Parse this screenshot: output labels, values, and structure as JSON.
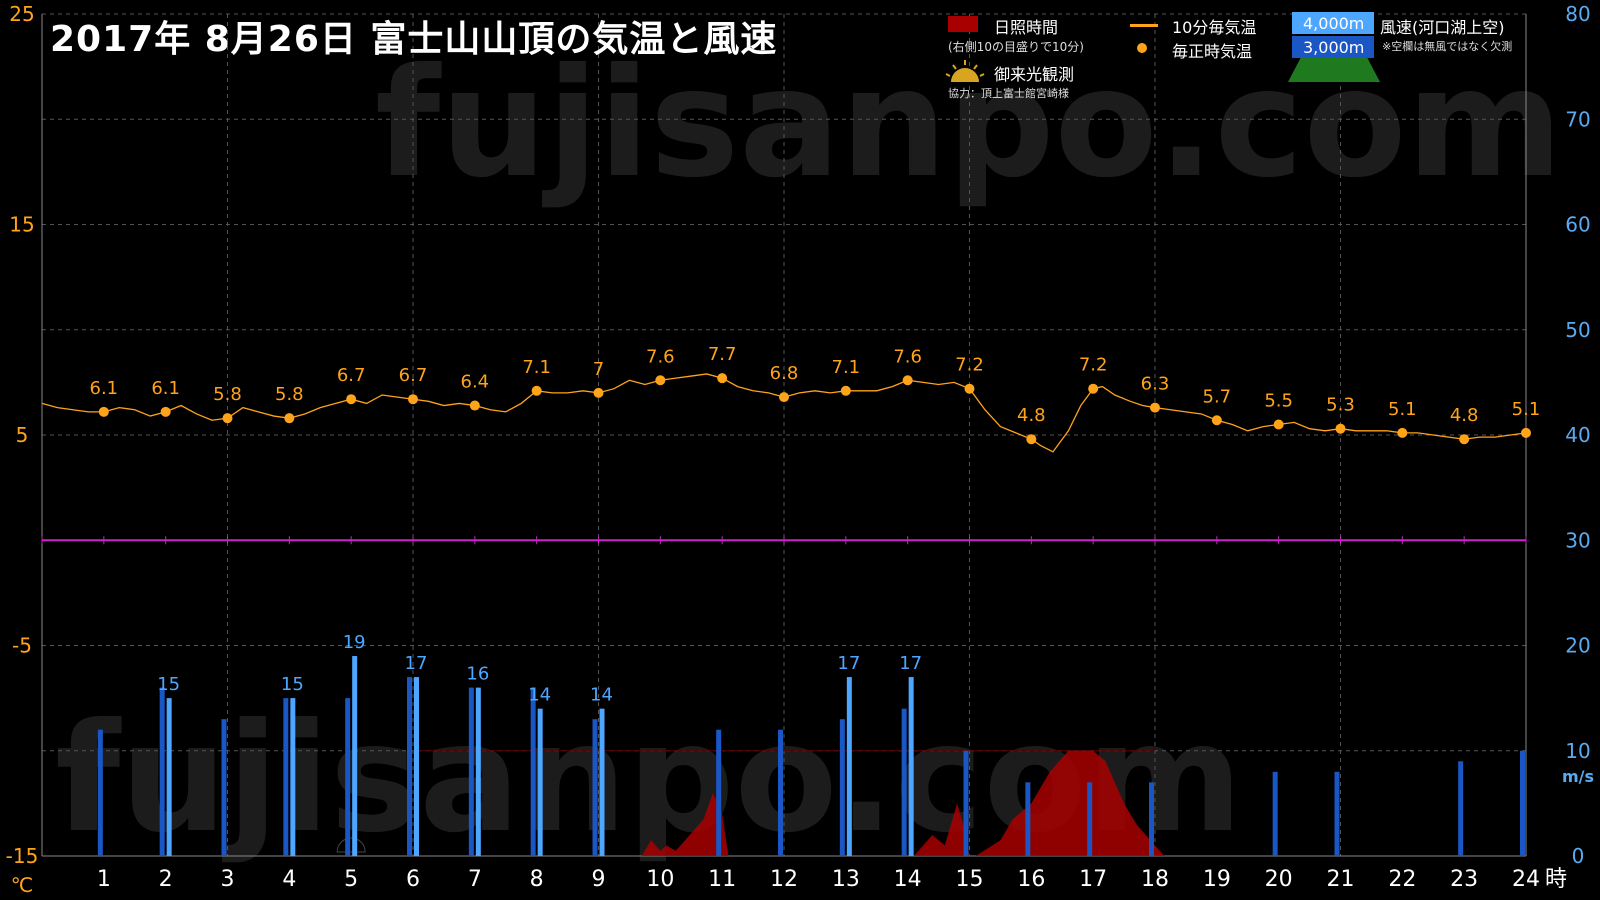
{
  "title": "2017年  8月26日   富士山山頂の気温と風速",
  "legend": {
    "sunshine": "日照時間",
    "sunshine_note": "(右側10の目盛りで10分)",
    "goraiko": "御来光観測",
    "credit": "協力：頂上富士館宮崎様",
    "temp10": "10分毎気温",
    "temp_hourly": "毎正時気温",
    "wind_4000": "4,000m",
    "wind_3000": "3,000m",
    "wind_title": "風速(河口湖上空)",
    "wind_note": "※空欄は無風ではなく欠測"
  },
  "watermark": "fujisanpo.com",
  "colors": {
    "temp": "#ffa31a",
    "wind4000": "#4da6ff",
    "wind3000": "#1a56c4",
    "sunshine": "#a80000",
    "zero_line": "#cc22cc",
    "grid": "#555555",
    "right_axis": "#5aaaf0"
  },
  "chart_data": {
    "type": "line",
    "title": "2017年  8月26日   富士山山頂の気温と風速",
    "x_axis": {
      "ticks": [
        "1",
        "2",
        "3",
        "4",
        "5",
        "6",
        "7",
        "8",
        "9",
        "10",
        "11",
        "12",
        "13",
        "14",
        "15",
        "16",
        "17",
        "18",
        "19",
        "20",
        "21",
        "22",
        "23",
        "24"
      ],
      "unit": "時",
      "range": [
        0,
        24
      ]
    },
    "y_left": {
      "unit": "℃",
      "range": [
        -15,
        25
      ],
      "ticks": [
        "25",
        "15",
        "5",
        "-5",
        "-15"
      ]
    },
    "y_right": {
      "unit": "m/s",
      "range": [
        0,
        80
      ],
      "ticks": [
        "80",
        "70",
        "60",
        "50",
        "40",
        "30",
        "20",
        "10",
        "0"
      ]
    },
    "series": [
      {
        "name": "毎正時気温",
        "axis": "left",
        "x": [
          1,
          2,
          3,
          4,
          5,
          6,
          7,
          8,
          9,
          10,
          11,
          12,
          13,
          14,
          15,
          16,
          17,
          18,
          19,
          20,
          21,
          22,
          23,
          24
        ],
        "values": [
          6.1,
          6.1,
          5.8,
          5.8,
          6.7,
          6.7,
          6.4,
          7.1,
          7.0,
          7.6,
          7.7,
          6.8,
          7.1,
          7.6,
          7.2,
          4.8,
          7.2,
          6.3,
          5.7,
          5.5,
          5.3,
          5.1,
          4.8,
          5.1
        ],
        "labels": [
          "6.1",
          "6.1",
          "5.8",
          "5.8",
          "6.7",
          "6.7",
          "6.4",
          "7.1",
          "7",
          "7.6",
          "7.7",
          "6.8",
          "7.1",
          "7.6",
          "7.2",
          "4.8",
          "7.2",
          "6.3",
          "5.7",
          "5.5",
          "5.3",
          "5.1",
          "4.8",
          "5.1"
        ]
      },
      {
        "name": "10分毎気温",
        "axis": "left",
        "x": [
          0.0,
          0.25,
          0.5,
          0.75,
          1.0,
          1.25,
          1.5,
          1.75,
          2.0,
          2.25,
          2.5,
          2.75,
          3.0,
          3.25,
          3.5,
          3.75,
          4.0,
          4.25,
          4.5,
          4.75,
          5.0,
          5.25,
          5.5,
          5.75,
          6.0,
          6.25,
          6.5,
          6.75,
          7.0,
          7.25,
          7.5,
          7.75,
          8.0,
          8.25,
          8.5,
          8.75,
          9.0,
          9.25,
          9.5,
          9.75,
          10.0,
          10.25,
          10.5,
          10.75,
          11.0,
          11.25,
          11.5,
          11.75,
          12.0,
          12.25,
          12.5,
          12.75,
          13.0,
          13.25,
          13.5,
          13.75,
          14.0,
          14.25,
          14.5,
          14.75,
          15.0,
          15.25,
          15.5,
          15.75,
          16.0,
          16.15,
          16.35,
          16.6,
          16.8,
          17.0,
          17.15,
          17.35,
          17.6,
          17.8,
          18.0,
          18.25,
          18.5,
          18.75,
          19.0,
          19.25,
          19.5,
          19.75,
          20.0,
          20.25,
          20.5,
          20.75,
          21.0,
          21.25,
          21.5,
          21.75,
          22.0,
          22.25,
          22.5,
          22.75,
          23.0,
          23.25,
          23.5,
          23.75,
          24.0
        ],
        "values": [
          6.5,
          6.3,
          6.2,
          6.1,
          6.1,
          6.3,
          6.2,
          5.9,
          6.1,
          6.4,
          6.0,
          5.7,
          5.8,
          6.3,
          6.1,
          5.9,
          5.8,
          6.0,
          6.3,
          6.5,
          6.7,
          6.5,
          6.9,
          6.8,
          6.7,
          6.6,
          6.4,
          6.5,
          6.4,
          6.2,
          6.1,
          6.5,
          7.1,
          7.0,
          7.0,
          7.1,
          7.0,
          7.2,
          7.6,
          7.4,
          7.6,
          7.7,
          7.8,
          7.9,
          7.7,
          7.3,
          7.1,
          7.0,
          6.8,
          7.0,
          7.1,
          7.0,
          7.1,
          7.1,
          7.1,
          7.3,
          7.6,
          7.5,
          7.4,
          7.5,
          7.2,
          6.2,
          5.4,
          5.1,
          4.8,
          4.5,
          4.2,
          5.2,
          6.4,
          7.2,
          7.3,
          6.9,
          6.6,
          6.4,
          6.3,
          6.2,
          6.1,
          6.0,
          5.7,
          5.5,
          5.2,
          5.4,
          5.5,
          5.6,
          5.3,
          5.2,
          5.3,
          5.2,
          5.2,
          5.2,
          5.1,
          5.1,
          5.0,
          4.9,
          4.8,
          4.9,
          4.9,
          5.0,
          5.1
        ]
      },
      {
        "name": "4,000m",
        "axis": "right",
        "type": "bar",
        "x": [
          2,
          4,
          5,
          6,
          7,
          8,
          9,
          13,
          14
        ],
        "values": [
          15,
          15,
          19,
          17,
          16,
          14,
          14,
          17,
          17
        ],
        "labels": [
          "15",
          "15",
          "19",
          "17",
          "16",
          "14",
          "14",
          "17",
          "17"
        ]
      },
      {
        "name": "3,000m",
        "axis": "right",
        "type": "bar",
        "x": [
          1,
          2,
          3,
          4,
          5,
          6,
          7,
          8,
          9,
          11,
          12,
          13,
          14,
          15,
          16,
          17,
          18,
          20,
          21,
          23,
          24
        ],
        "values": [
          12,
          16,
          13,
          15,
          15,
          17,
          16,
          16,
          13,
          12,
          12,
          13,
          14,
          10,
          7,
          7,
          7,
          8,
          8,
          9,
          10
        ]
      },
      {
        "name": "日照時間",
        "axis": "right",
        "type": "area",
        "x": [
          9.7,
          9.85,
          10.0,
          10.1,
          10.25,
          10.4,
          10.55,
          10.7,
          10.85,
          11.0,
          11.1,
          14.1,
          14.25,
          14.4,
          14.6,
          14.8,
          14.9,
          15.0,
          15.1,
          15.5,
          15.7,
          16.0,
          16.3,
          16.6,
          16.8,
          17.0,
          17.2,
          17.5,
          17.7,
          18.0,
          18.15
        ],
        "values": [
          0,
          1.5,
          0.5,
          1,
          0.5,
          1.5,
          2.5,
          3.5,
          6,
          4,
          0,
          0,
          1,
          2,
          1,
          5,
          3,
          0,
          0,
          1.5,
          3.5,
          5,
          8,
          10,
          10,
          10,
          9,
          5,
          3,
          1,
          0
        ]
      }
    ]
  }
}
